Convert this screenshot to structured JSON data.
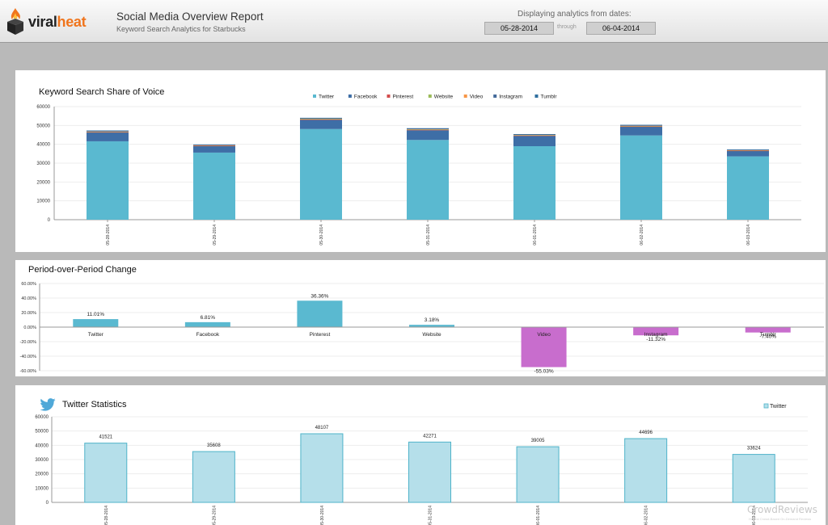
{
  "app": {
    "logo_part1": "viral",
    "logo_part2": "heat",
    "report_title": "Social Media Overview Report",
    "report_subtitle": "Keyword Search Analytics for Starbucks",
    "dates_label": "Displaying analytics from dates:",
    "date_from": "05-28-2014",
    "through_label": "through",
    "date_to": "06-04-2014"
  },
  "colors": {
    "twitter": "#5ab9d0",
    "facebook": "#3e6ea6",
    "pinterest": "#d34c4c",
    "website": "#9bbb59",
    "video": "#f79646",
    "instagram": "#446a9a",
    "tumblr": "#2f6f9f",
    "positive": "#5ab9d0",
    "negative": "#c86dcd",
    "twitter_bar": "#b5dfea",
    "twitter_bar_border": "#4fb3c9"
  },
  "chart_data": [
    {
      "type": "bar",
      "stacked": true,
      "title": "Keyword Search Share of Voice",
      "categories": [
        "05-28-2014",
        "05-29-2014",
        "05-30-2014",
        "05-31-2014",
        "06-01-2014",
        "06-02-2014",
        "06-03-2014"
      ],
      "series": [
        {
          "name": "Twitter",
          "values": [
            41600,
            35600,
            48100,
            42300,
            39000,
            44700,
            33600
          ]
        },
        {
          "name": "Facebook",
          "values": [
            4700,
            3500,
            4900,
            5200,
            5500,
            4600,
            2900
          ]
        },
        {
          "name": "Pinterest",
          "values": [
            150,
            120,
            170,
            150,
            140,
            160,
            110
          ]
        },
        {
          "name": "Website",
          "values": [
            250,
            200,
            300,
            260,
            230,
            280,
            200
          ]
        },
        {
          "name": "Video",
          "values": [
            80,
            60,
            90,
            80,
            70,
            80,
            60
          ]
        },
        {
          "name": "Instagram",
          "values": [
            450,
            350,
            400,
            450,
            400,
            420,
            300
          ]
        },
        {
          "name": "Tumblr",
          "values": [
            100,
            80,
            100,
            90,
            90,
            100,
            80
          ]
        }
      ],
      "ylim": [
        0,
        60000
      ],
      "yticks": [
        "60000",
        "50000",
        "40000",
        "30000",
        "20000",
        "10000",
        "0"
      ],
      "legend": "top-center"
    },
    {
      "type": "bar",
      "title": "Period-over-Period Change",
      "categories": [
        "Twitter",
        "Facebook",
        "Pinterest",
        "Website",
        "Video",
        "Instagram",
        "Tumblr"
      ],
      "values": [
        11.01,
        6.81,
        36.36,
        3.18,
        -55.03,
        -11.32,
        -7.4
      ],
      "labels": [
        "11.01%",
        "6.81%",
        "36.36%",
        "3.18%",
        "-55.03%",
        "-11.32%",
        "-7.40%"
      ],
      "ylim": [
        -60,
        60
      ],
      "yticks": [
        "60.00%",
        "40.00%",
        "20.00%",
        "0.00%",
        "-20.00%",
        "-40.00%",
        "-60.00%"
      ]
    },
    {
      "type": "bar",
      "title": "Twitter Statistics",
      "categories": [
        "05-28-2014",
        "05-29-2014",
        "05-30-2014",
        "05-31-2014",
        "06-01-2014",
        "06-02-2014",
        "06-03-2014"
      ],
      "series": [
        {
          "name": "Twitter",
          "values": [
            41521,
            35608,
            48107,
            42271,
            39005,
            44696,
            33624
          ]
        }
      ],
      "labels": [
        "41521",
        "35608",
        "48107",
        "42271",
        "39005",
        "44696",
        "33624"
      ],
      "ylim": [
        0,
        60000
      ],
      "yticks": [
        "60000",
        "50000",
        "40000",
        "30000",
        "20000",
        "10000",
        "0"
      ],
      "legend": "top-right"
    }
  ],
  "watermark": {
    "brand": "CrowdReviews",
    "tagline": "Honest Crowd-Based On-Demand Reviews"
  }
}
